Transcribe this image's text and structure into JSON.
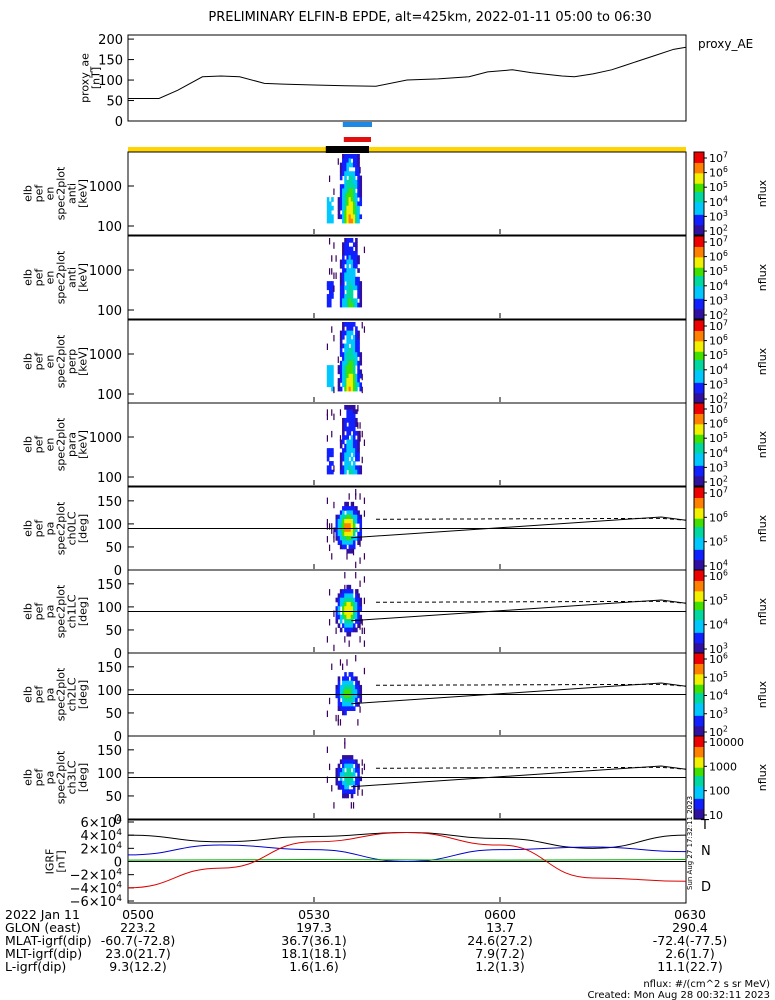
{
  "title": "PRELIMINARY ELFIN-B EPDE, alt=425km, 2022-01-11 05:00 to 06:30",
  "colors": {
    "ae_line": "#000000",
    "bar_blue": "#1e88e5",
    "bar_red": "#e01010",
    "science_bar": "#ffd400",
    "science_bar_dark": "#000000",
    "igrf_x": "#000000",
    "igrf_y": "#0000cc",
    "igrf_z": "#00b000",
    "igrf_d": "#dd0000"
  },
  "panels": {
    "ae": {
      "ylabel": "proxy_ae\n[nT]",
      "legend": "proxy_AE",
      "yticks": [
        "200",
        "150",
        "100",
        "50",
        "0"
      ],
      "ylim": [
        0,
        210
      ]
    },
    "spectra": [
      {
        "name": "en_antiB",
        "ylabel": "elb\npef\nen\nspec2plot\nanti\n[keV]",
        "yticks": [
          "1000",
          "100"
        ],
        "cbar_ticks": [
          "10^7",
          "10^6",
          "10^5",
          "10^4",
          "10^3",
          "10^2"
        ],
        "cbar_label": "nflux"
      },
      {
        "name": "en_antiB2",
        "ylabel": "elb\npef\nen\nspec2plot\nanti\n[keV]",
        "yticks": [
          "1000",
          "100"
        ],
        "cbar_ticks": [
          "10^7",
          "10^6",
          "10^5",
          "10^4",
          "10^3",
          "10^2"
        ],
        "cbar_label": "nflux"
      },
      {
        "name": "en_perp",
        "ylabel": "elb\npef\nen\nspec2plot\nperp\n[keV]",
        "yticks": [
          "1000",
          "100"
        ],
        "cbar_ticks": [
          "10^7",
          "10^6",
          "10^5",
          "10^4",
          "10^3",
          "10^2"
        ],
        "cbar_label": "nflux"
      },
      {
        "name": "en_para",
        "ylabel": "elb\npef\nen\nspec2plot\npara\n[keV]",
        "yticks": [
          "1000",
          "100"
        ],
        "cbar_ticks": [
          "10^7",
          "10^6",
          "10^5",
          "10^4",
          "10^3",
          "10^2"
        ],
        "cbar_label": "nflux"
      }
    ],
    "pitch": [
      {
        "name": "ch0LC",
        "ylabel": "elb\npef\npa\nspec2plot\nch0LC\n[deg]",
        "yticks": [
          "150",
          "100",
          "50",
          "0"
        ],
        "cbar_ticks": [
          "10^7",
          "10^6",
          "10^5",
          "10^4"
        ],
        "cbar_label": "nflux"
      },
      {
        "name": "ch1LC",
        "ylabel": "elb\npef\npa\nspec2plot\nch1LC\n[deg]",
        "yticks": [
          "150",
          "100",
          "50",
          "0"
        ],
        "cbar_ticks": [
          "10^6",
          "10^5",
          "10^4",
          "10^3"
        ],
        "cbar_label": "nflux"
      },
      {
        "name": "ch2LC",
        "ylabel": "elb\npef\npa\nspec2plot\nch2LC\n[deg]",
        "yticks": [
          "150",
          "100",
          "50",
          "0"
        ],
        "cbar_ticks": [
          "10^6",
          "10^5",
          "10^4",
          "10^3",
          "10^2"
        ],
        "cbar_label": "nflux"
      },
      {
        "name": "ch3LC",
        "ylabel": "elb\npef\npa\nspec2plot\nch3LC\n[deg]",
        "yticks": [
          "150",
          "100",
          "50",
          "0"
        ],
        "cbar_ticks": [
          "10000",
          "1000",
          "100",
          "10"
        ],
        "cbar_label": "nflux"
      }
    ],
    "igrf": {
      "ylabel": "IGRF\n[nT]",
      "yticks": [
        "6×10^4",
        "4×10^4",
        "2×10^4",
        "0",
        "−2×10^4",
        "−4×10^4",
        "−6×10^4"
      ],
      "legend": [
        "T",
        "N",
        "D"
      ],
      "side_text": "Sun Aug 27 17:32:11 2023"
    }
  },
  "footer": {
    "rows": [
      {
        "label": "2022 Jan 11",
        "values": [
          "0500",
          "0530",
          "0600",
          "0630"
        ]
      },
      {
        "label": "GLON (east)",
        "values": [
          "223.2",
          "197.3",
          "13.7",
          "290.4"
        ]
      },
      {
        "label": "MLAT-igrf(dip)",
        "values": [
          "-60.7(-72.8)",
          "36.7(36.1)",
          "24.6(27.2)",
          "-72.4(-77.5)"
        ]
      },
      {
        "label": "MLT-igrf(dip)",
        "values": [
          "23.0(21.7)",
          "18.1(18.1)",
          "7.9(7.2)",
          "2.6(1.7)"
        ]
      },
      {
        "label": "L-igrf(dip)",
        "values": [
          "9.3(12.2)",
          "1.6(1.6)",
          "1.2(1.3)",
          "11.1(22.7)"
        ]
      }
    ],
    "units_note": "nflux: #/(cm^2 s sr MeV)",
    "created": "Created: Mon Aug 28 00:32:11 2023"
  },
  "chart_data": {
    "type": "line",
    "title": "PRELIMINARY ELFIN-B EPDE, alt=425km, 2022-01-11 05:00 to 06:30",
    "x_range_minutes": [
      0,
      90
    ],
    "x_ticks": [
      "0500",
      "0530",
      "0600",
      "0630"
    ],
    "proxy_ae": {
      "x": [
        0,
        5,
        8,
        12,
        15,
        18,
        22,
        25,
        30,
        35,
        40,
        45,
        50,
        55,
        58,
        62,
        65,
        70,
        72,
        75,
        78,
        80,
        82,
        85,
        88,
        90
      ],
      "y": [
        55,
        55,
        75,
        108,
        110,
        108,
        92,
        90,
        88,
        86,
        85,
        100,
        103,
        108,
        120,
        125,
        118,
        110,
        108,
        115,
        125,
        135,
        145,
        160,
        175,
        180
      ]
    },
    "science_zone": {
      "start": 34,
      "end": 40
    },
    "igrf": {
      "series": [
        {
          "name": "T",
          "x": [
            0,
            15,
            30,
            45,
            60,
            75,
            90
          ],
          "y": [
            40000,
            30000,
            38000,
            44000,
            35000,
            20000,
            40000
          ]
        },
        {
          "name": "N",
          "x": [
            0,
            15,
            30,
            45,
            60,
            75,
            90
          ],
          "y": [
            10000,
            25000,
            18000,
            0,
            18000,
            22000,
            15000
          ]
        },
        {
          "name": "",
          "x": [
            0,
            30,
            60,
            90
          ],
          "y": [
            2000,
            3000,
            2000,
            3000
          ]
        },
        {
          "name": "D",
          "x": [
            0,
            15,
            30,
            45,
            60,
            75,
            90
          ],
          "y": [
            -40000,
            -10000,
            30000,
            44000,
            25000,
            -25000,
            -30000
          ]
        }
      ]
    }
  }
}
